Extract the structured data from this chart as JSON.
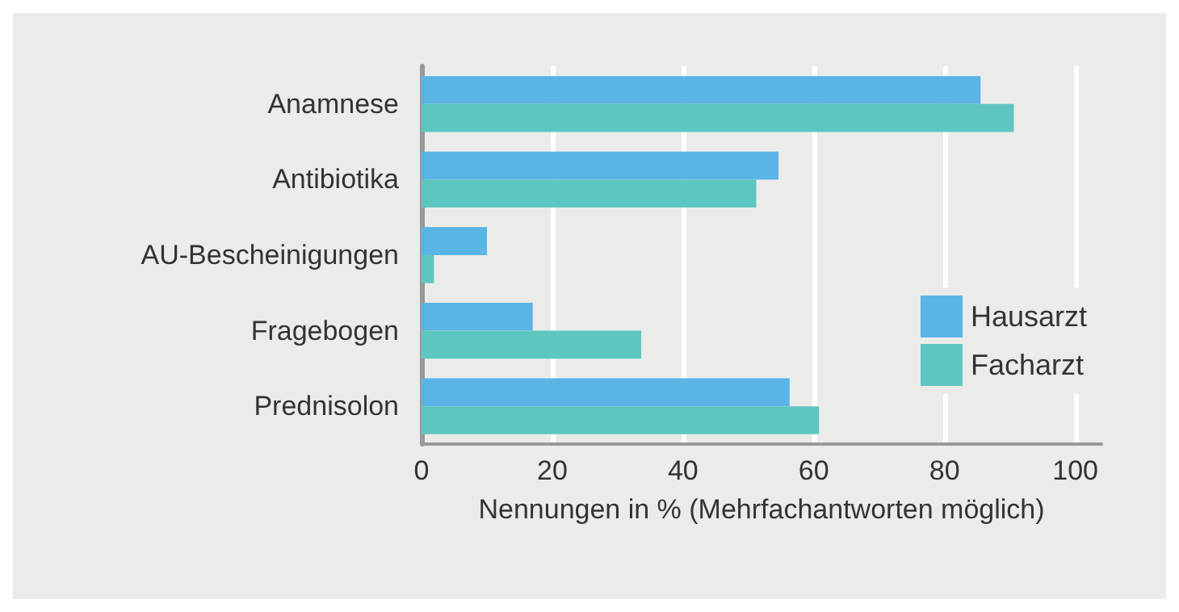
{
  "chart_data": {
    "type": "bar",
    "orientation": "horizontal",
    "xlabel": "Nennungen in % (Mehrfachantworten möglich)",
    "categories": [
      "Anamnese",
      "Antibiotika",
      "AU-Bescheinigungen",
      "Fragebogen",
      "Prednisolon"
    ],
    "series": [
      {
        "name": "Hausarzt",
        "color": "#5ab4e5",
        "values": [
          85.5,
          54.6,
          10,
          17,
          56.3
        ]
      },
      {
        "name": "Facharzt",
        "color": "#5ec6c0",
        "values": [
          90.6,
          51.2,
          1.9,
          33.6,
          60.8
        ]
      }
    ],
    "xlim": [
      0,
      104
    ],
    "xticks": [
      0,
      20,
      40,
      60,
      80,
      100
    ],
    "grid": "x",
    "legend": "right"
  }
}
